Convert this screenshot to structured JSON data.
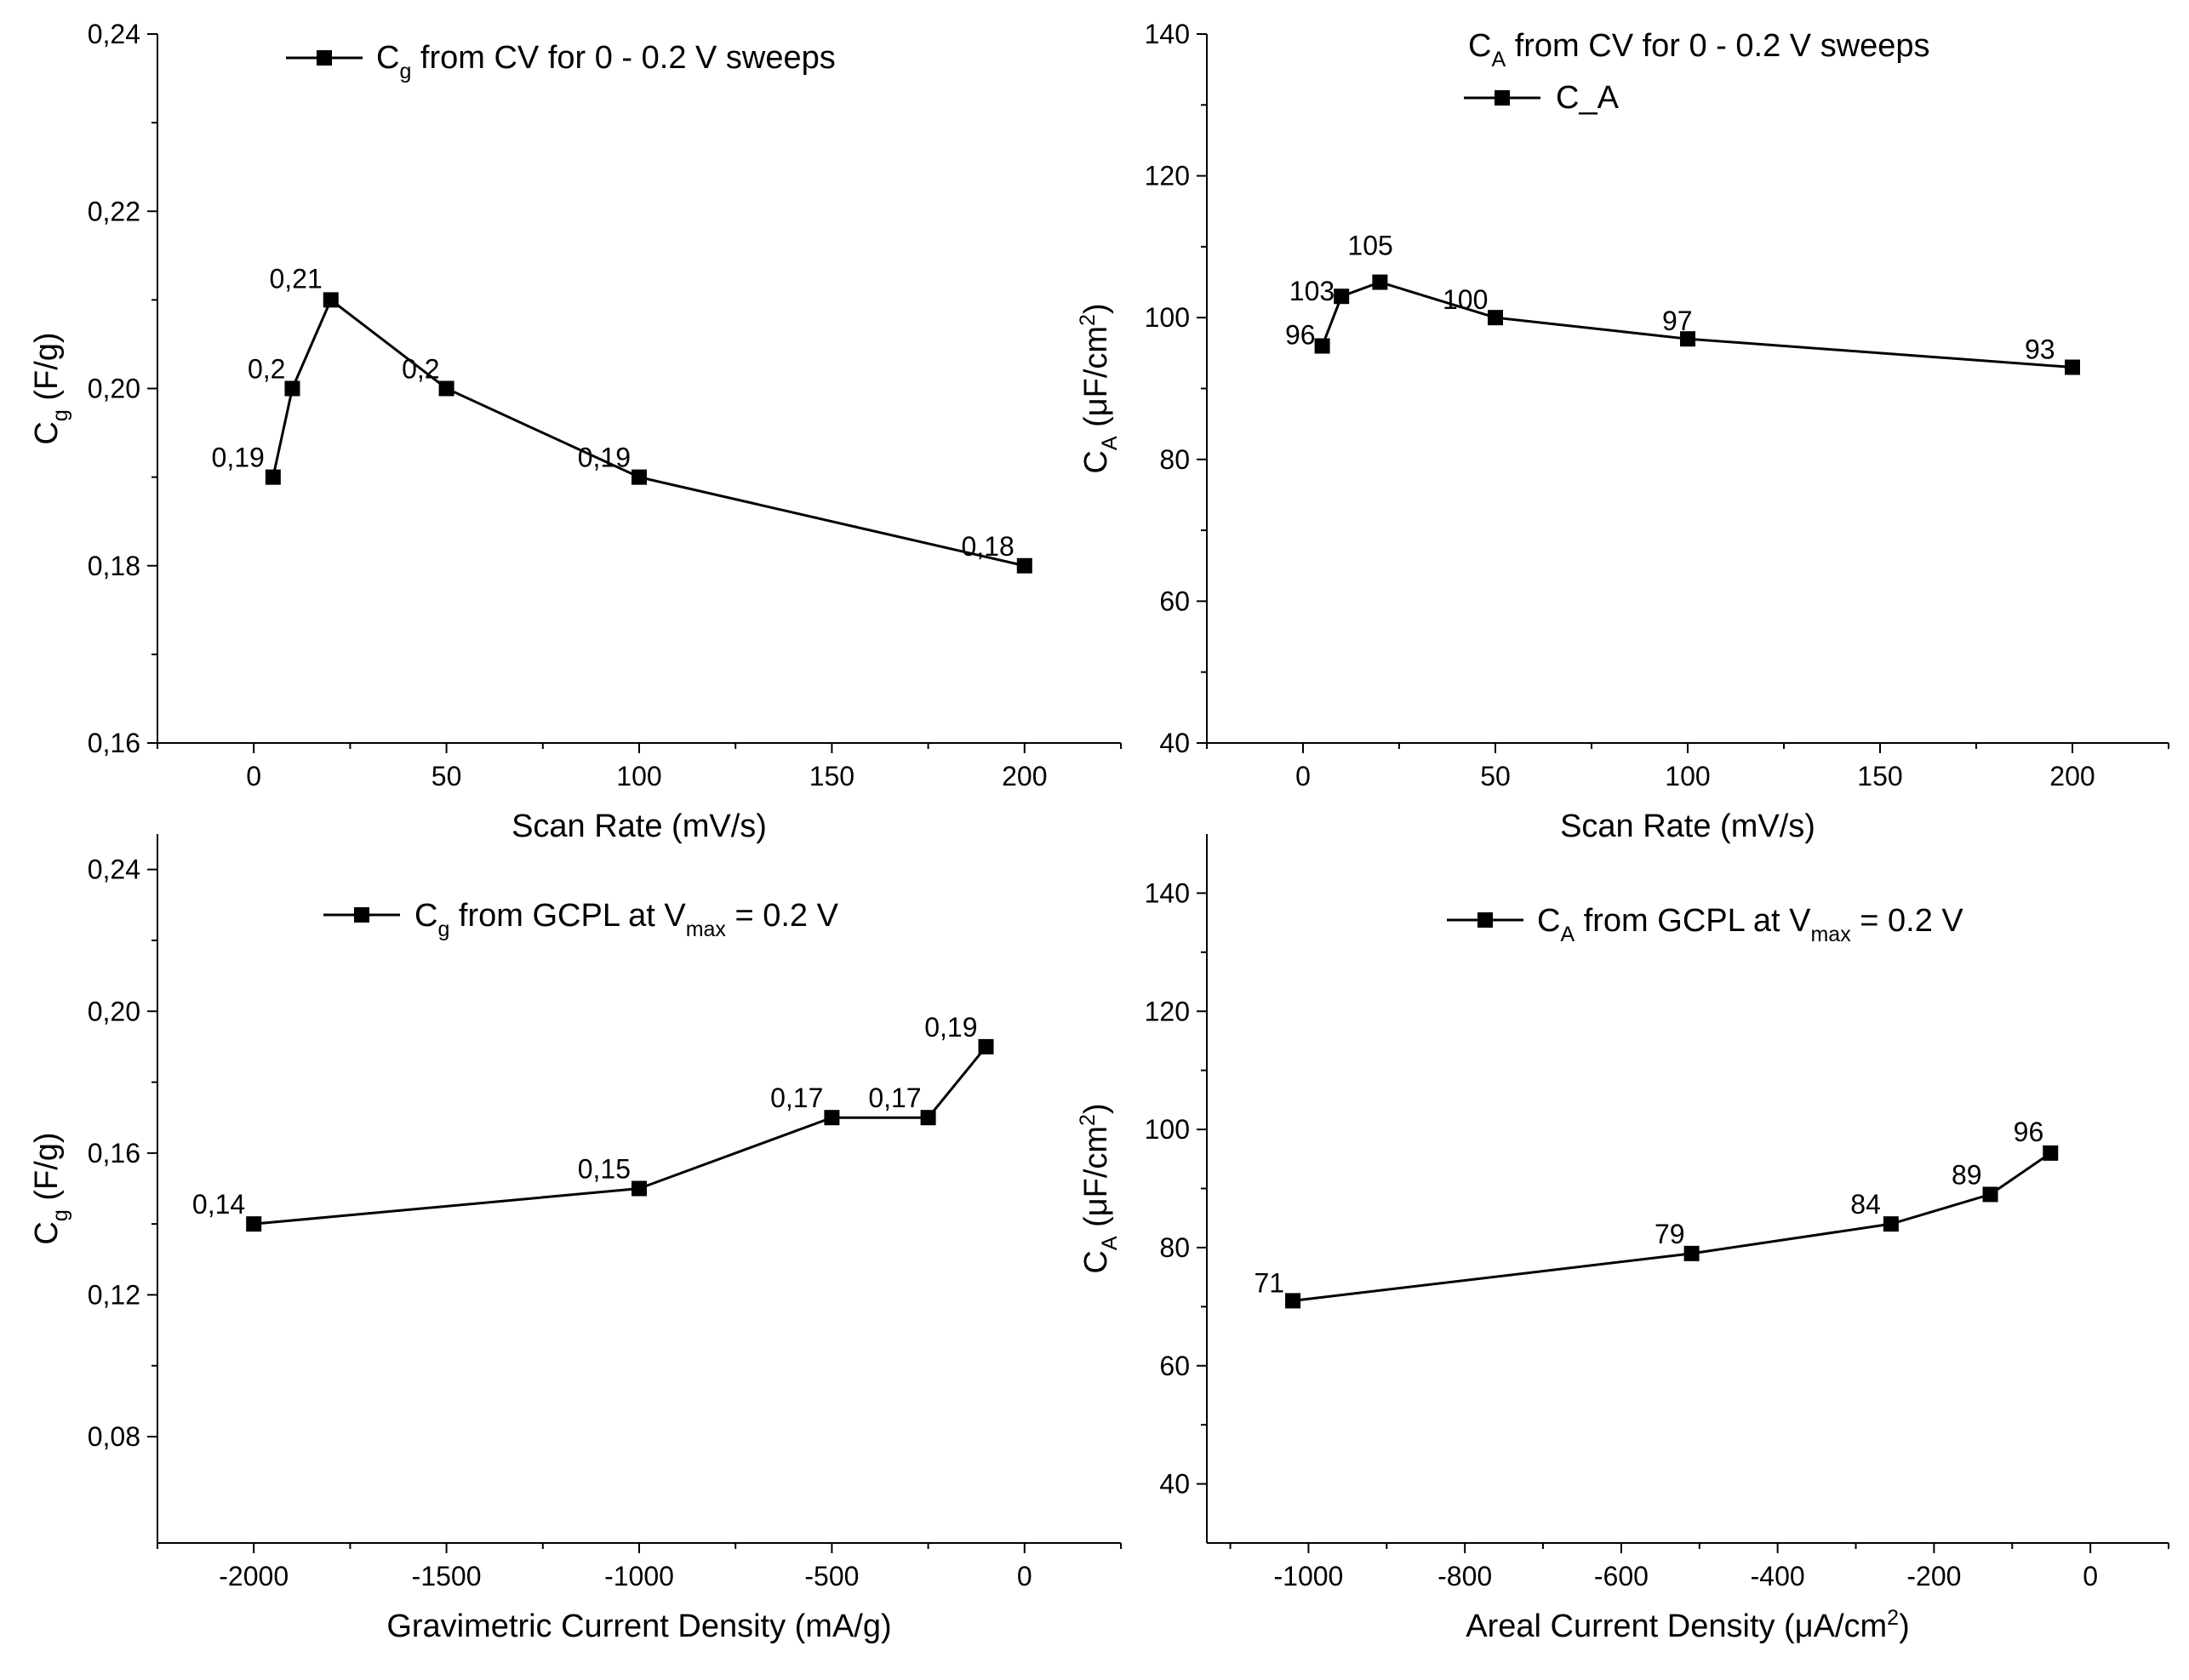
{
  "chart_data": [
    {
      "type": "line",
      "legend": {
        "base": "C",
        "sub": "g",
        "rest": " from CV for 0 - 0.2 V sweeps"
      },
      "ylabel": {
        "base": "C",
        "sub": "g",
        "rest": " (F/g)"
      },
      "xlabel": "Scan Rate (mV/s)",
      "xlim": [
        -25,
        225
      ],
      "ylim": [
        0.16,
        0.24
      ],
      "x_ticks": [
        0,
        50,
        100,
        150,
        200
      ],
      "x_tick_labels": [
        "0",
        "50",
        "100",
        "150",
        "200"
      ],
      "y_ticks": [
        0.16,
        0.18,
        0.2,
        0.22,
        0.24
      ],
      "y_tick_labels": [
        "0,16",
        "0,18",
        "0,20",
        "0,22",
        "0,24"
      ],
      "series": [
        {
          "x": [
            5,
            10,
            20,
            50,
            100,
            200
          ],
          "y": [
            0.19,
            0.2,
            0.21,
            0.2,
            0.19,
            0.18
          ],
          "labels": [
            "0,19",
            "0,2",
            "0,21",
            "0,2",
            "0,19",
            "0,18"
          ]
        }
      ]
    },
    {
      "type": "line",
      "title": {
        "base": "C",
        "sub": "A",
        "rest": " from CV for 0 - 0.2 V sweeps"
      },
      "legend": {
        "base": "C_A",
        "sub": "",
        "rest": ""
      },
      "ylabel": {
        "base": "C",
        "sub": "A",
        "rest": " (μF/cm",
        "sup": "2",
        "end": ")"
      },
      "xlabel": "Scan Rate (mV/s)",
      "xlim": [
        -25,
        225
      ],
      "ylim": [
        40,
        140
      ],
      "x_ticks": [
        0,
        50,
        100,
        150,
        200
      ],
      "x_tick_labels": [
        "0",
        "50",
        "100",
        "150",
        "200"
      ],
      "y_ticks": [
        40,
        60,
        80,
        100,
        120,
        140
      ],
      "y_tick_labels": [
        "40",
        "60",
        "80",
        "100",
        "120",
        "140"
      ],
      "series": [
        {
          "name": "C_A",
          "x": [
            5,
            10,
            20,
            50,
            100,
            200
          ],
          "y": [
            96,
            103,
            105,
            100,
            97,
            93
          ],
          "labels": [
            "96",
            "103",
            "105",
            "100",
            "97",
            "93"
          ]
        }
      ]
    },
    {
      "type": "line",
      "legend": {
        "base": "C",
        "sub": "g",
        "rest": "  from GCPL at V",
        "sub2": "max",
        "end": " = 0.2  V"
      },
      "ylabel": {
        "base": "C",
        "sub": "g",
        "rest": " (F/g)"
      },
      "xlabel": "Gravimetric Current Density (mA/g)",
      "xlim": [
        -2250,
        250
      ],
      "ylim": [
        0.05,
        0.25
      ],
      "x_ticks": [
        -2000,
        -1500,
        -1000,
        -500,
        0
      ],
      "x_tick_labels": [
        "-2000",
        "-1500",
        "-1000",
        "-500",
        "0"
      ],
      "y_ticks": [
        0.08,
        0.12,
        0.16,
        0.2,
        0.24
      ],
      "y_tick_labels": [
        "0,08",
        "0,12",
        "0,16",
        "0,20",
        "0,24"
      ],
      "series": [
        {
          "x": [
            -2000,
            -1000,
            -500,
            -250,
            -100
          ],
          "y": [
            0.14,
            0.15,
            0.17,
            0.17,
            0.19
          ],
          "labels": [
            "0,14",
            "0,15",
            "0,17",
            "0,17",
            "0,19"
          ]
        }
      ]
    },
    {
      "type": "line",
      "legend": {
        "base": "C",
        "sub": "A",
        "rest": " from GCPL at V",
        "sub2": "max",
        "end": " = 0.2  V"
      },
      "ylabel": {
        "base": "C",
        "sub": "A",
        "rest": " (μF/cm",
        "sup": "2",
        "end": ")"
      },
      "xlabel": {
        "base": "Areal Current Density (μA/cm",
        "sup": "2",
        "end": ")"
      },
      "xlim": [
        -1130,
        100
      ],
      "ylim": [
        30,
        150
      ],
      "x_ticks": [
        -1000,
        -800,
        -600,
        -400,
        -200,
        0
      ],
      "x_tick_labels": [
        "-1000",
        "-800",
        "-600",
        "-400",
        "-200",
        "0"
      ],
      "y_ticks": [
        40,
        60,
        80,
        100,
        120,
        140
      ],
      "y_tick_labels": [
        "40",
        "60",
        "80",
        "100",
        "120",
        "140"
      ],
      "series": [
        {
          "x": [
            -1020,
            -510,
            -255,
            -128,
            -51
          ],
          "y": [
            71,
            79,
            84,
            89,
            96
          ],
          "labels": [
            "71",
            "79",
            "84",
            "89",
            "96"
          ]
        }
      ]
    }
  ]
}
